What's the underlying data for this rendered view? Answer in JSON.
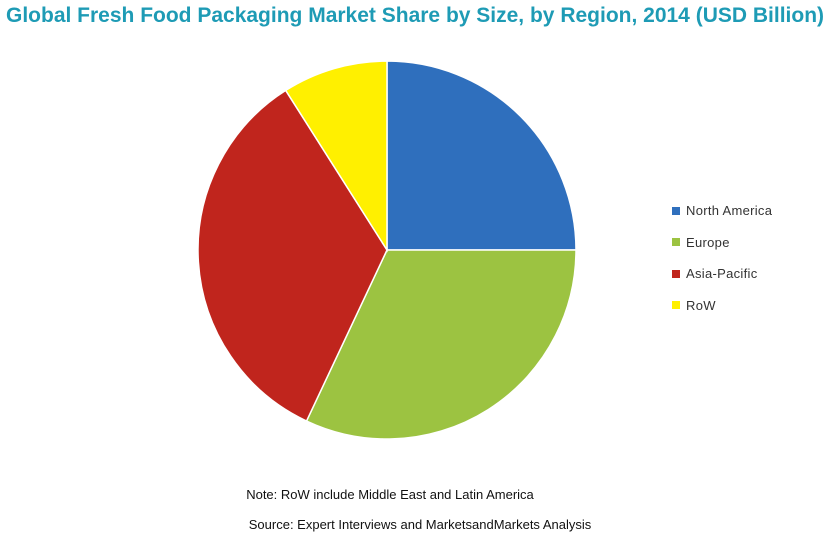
{
  "chart_data": {
    "type": "pie",
    "title": "Global Fresh Food Packaging Market Share by Size, by Region, 2014 (USD Billion)",
    "categories": [
      "North America",
      "Europe",
      "Asia-Pacific",
      "RoW"
    ],
    "values": [
      25,
      32,
      34,
      9
    ],
    "colors": [
      "#2f6fbd",
      "#9cc341",
      "#c0251d",
      "#fff000"
    ],
    "legend_position": "right",
    "note": "Note: RoW include Middle East and Latin America",
    "source": "Source: Expert Interviews and MarketsandMarkets Analysis"
  }
}
